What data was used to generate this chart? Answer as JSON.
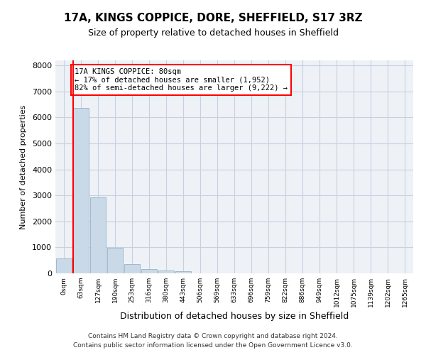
{
  "title1": "17A, KINGS COPPICE, DORE, SHEFFIELD, S17 3RZ",
  "title2": "Size of property relative to detached houses in Sheffield",
  "xlabel": "Distribution of detached houses by size in Sheffield",
  "ylabel": "Number of detached properties",
  "bin_labels": [
    "0sqm",
    "63sqm",
    "127sqm",
    "190sqm",
    "253sqm",
    "316sqm",
    "380sqm",
    "443sqm",
    "506sqm",
    "569sqm",
    "633sqm",
    "696sqm",
    "759sqm",
    "822sqm",
    "886sqm",
    "949sqm",
    "1012sqm",
    "1075sqm",
    "1139sqm",
    "1202sqm",
    "1265sqm"
  ],
  "bar_values": [
    570,
    6380,
    2920,
    980,
    360,
    175,
    105,
    75,
    0,
    0,
    0,
    0,
    0,
    0,
    0,
    0,
    0,
    0,
    0,
    0,
    0
  ],
  "bar_color": "#c9d9e8",
  "bar_edgecolor": "#a0b8cc",
  "grid_color": "#c8d0e0",
  "property_line_x": 0.525,
  "annotation_title": "17A KINGS COPPICE: 80sqm",
  "annotation_line1": "← 17% of detached houses are smaller (1,952)",
  "annotation_line2": "82% of semi-detached houses are larger (9,222) →",
  "ylim": [
    0,
    8200
  ],
  "yticks": [
    0,
    1000,
    2000,
    3000,
    4000,
    5000,
    6000,
    7000,
    8000
  ],
  "footer1": "Contains HM Land Registry data © Crown copyright and database right 2024.",
  "footer2": "Contains public sector information licensed under the Open Government Licence v3.0.",
  "bg_color": "#eef2f7"
}
